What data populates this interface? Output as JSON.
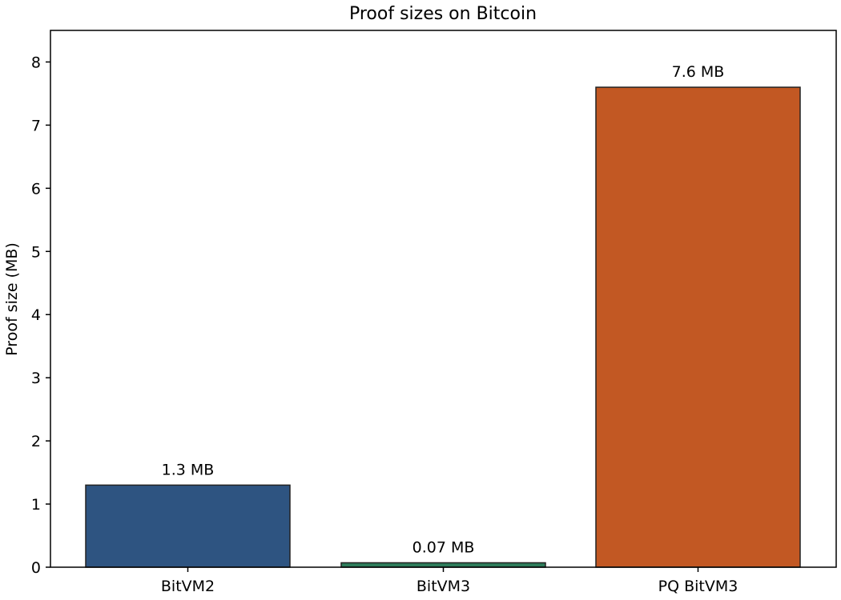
{
  "chart_data": {
    "type": "bar",
    "title": "Proof sizes on Bitcoin",
    "xlabel": "",
    "ylabel": "Proof size (MB)",
    "categories": [
      "BitVM2",
      "BitVM3",
      "PQ BitVM3"
    ],
    "values": [
      1.3,
      0.07,
      7.6
    ],
    "data_labels": [
      "1.3 MB",
      "0.07 MB",
      "7.6 MB"
    ],
    "colors": [
      "#2e5481",
      "#2e7d5b",
      "#c25823"
    ],
    "ylim": [
      0,
      8.5
    ],
    "yticks": [
      0,
      1,
      2,
      3,
      4,
      5,
      6,
      7,
      8
    ],
    "grid": false,
    "legend": "none"
  }
}
